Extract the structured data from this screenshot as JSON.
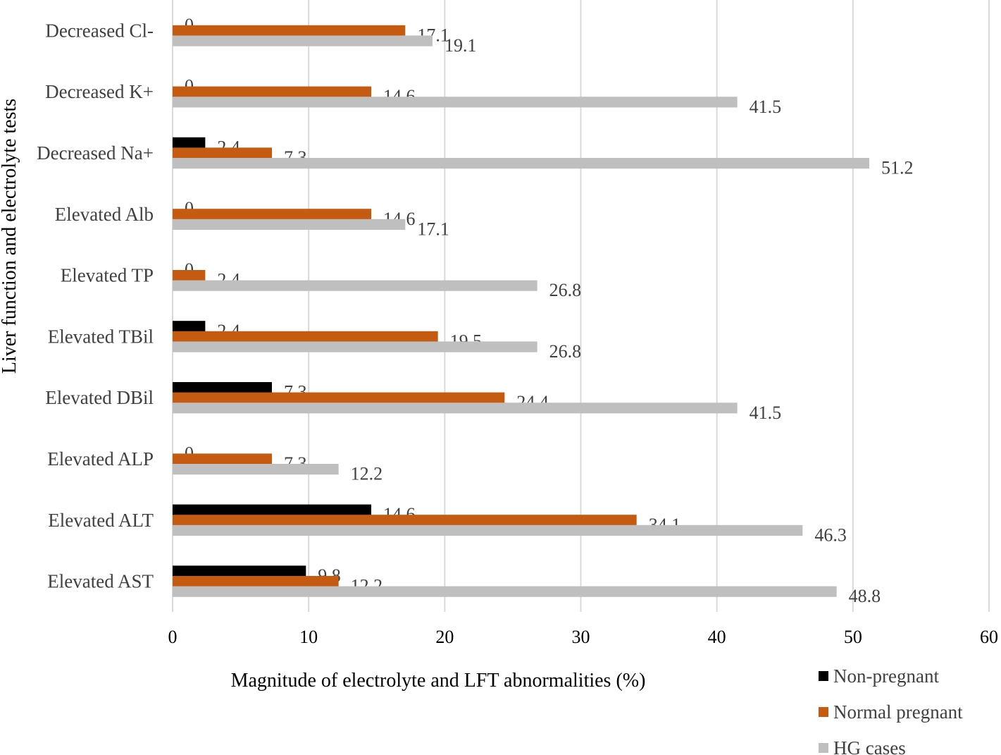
{
  "chart_data": {
    "type": "bar",
    "orientation": "horizontal",
    "categories": [
      "Decreased Cl-",
      "Decreased K+",
      "Decreased Na+",
      "Elevated Alb",
      "Elevated TP",
      "Elevated TBil",
      "Elevated DBil",
      "Elevated ALP",
      "Elevated ALT",
      "Elevated AST"
    ],
    "series": [
      {
        "name": "Non-pregnant",
        "color": "#000000",
        "values": [
          0,
          0,
          2.4,
          0,
          0,
          2.4,
          7.3,
          0,
          14.6,
          9.8
        ]
      },
      {
        "name": "Normal pregnant",
        "color": "#c55a11",
        "values": [
          17.1,
          14.6,
          7.3,
          14.6,
          2.4,
          19.5,
          24.4,
          7.3,
          34.1,
          12.2
        ]
      },
      {
        "name": "HG cases",
        "color": "#bfbfbf",
        "values": [
          19.1,
          41.5,
          51.2,
          17.1,
          26.8,
          26.8,
          41.5,
          12.2,
          46.3,
          48.8
        ]
      }
    ],
    "xlabel": "Magnitude of electrolyte and LFT abnormalities (%)",
    "ylabel": "Liver function and electrolyte tests",
    "xlim": [
      0,
      60
    ],
    "xticks": [
      0,
      10,
      20,
      30,
      40,
      50,
      60
    ],
    "grid": true,
    "legend_position": "bottom-right"
  }
}
